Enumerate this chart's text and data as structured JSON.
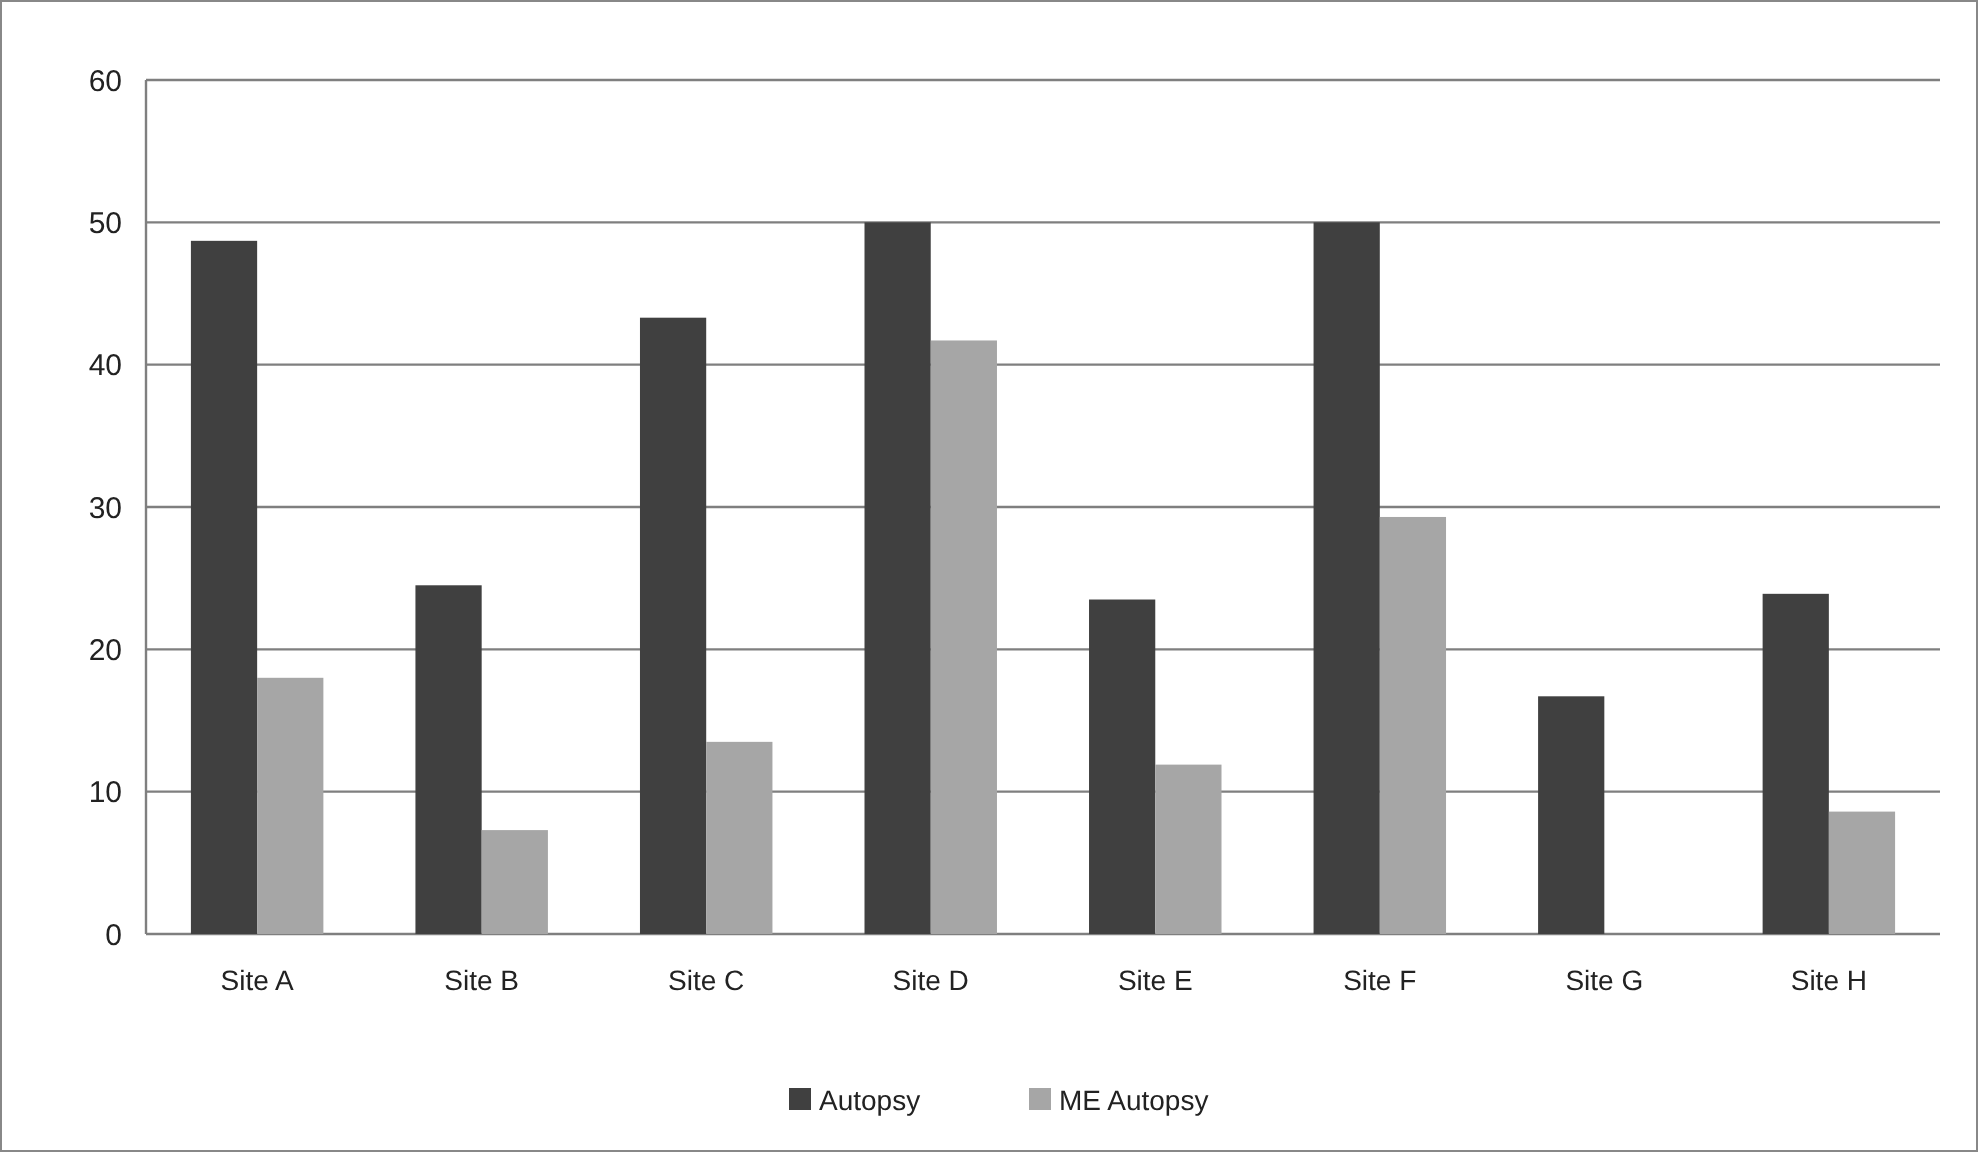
{
  "chart_data": {
    "type": "bar",
    "categories": [
      "Site A",
      "Site B",
      "Site C",
      "Site D",
      "Site E",
      "Site F",
      "Site G",
      "Site H"
    ],
    "series": [
      {
        "name": "Autopsy",
        "color": "#404040",
        "values": [
          48.7,
          24.5,
          43.3,
          50,
          23.5,
          50,
          16.7,
          23.9
        ]
      },
      {
        "name": "ME Autopsy",
        "color": "#a6a6a6",
        "values": [
          18,
          7.3,
          13.5,
          41.7,
          11.9,
          29.3,
          0,
          8.6
        ]
      }
    ],
    "ylim": [
      0,
      60
    ],
    "yticks": [
      0,
      10,
      20,
      30,
      40,
      50,
      60
    ],
    "grid": "y",
    "legend": "bottom"
  }
}
